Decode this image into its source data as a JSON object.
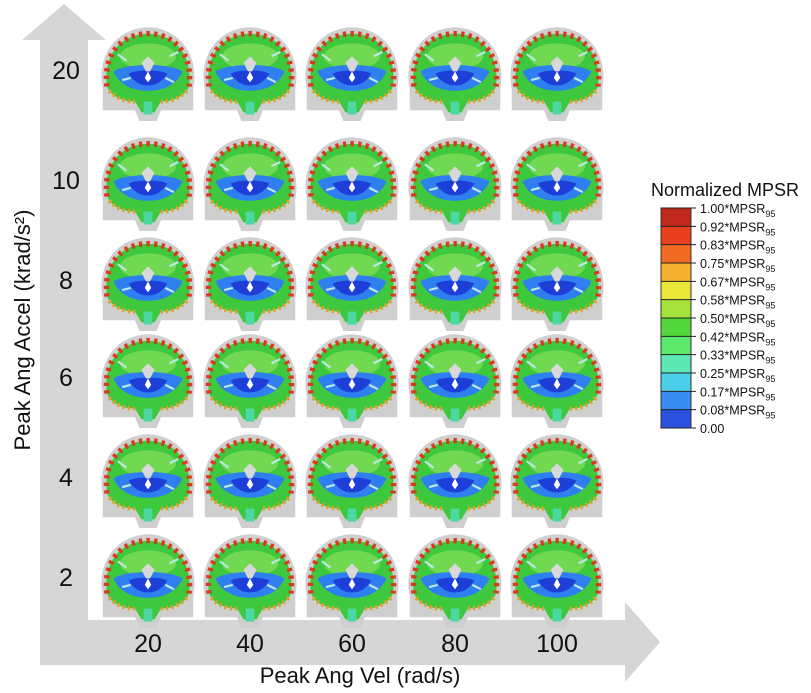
{
  "figure": {
    "y_axis_label": "Peak Ang Accel (krad/s²)",
    "x_axis_label": "Peak Ang Vel (rad/s)",
    "row_labels": [
      "20",
      "10",
      "8",
      "6",
      "4",
      "2"
    ],
    "column_labels": [
      "20",
      "40",
      "60",
      "80",
      "100"
    ],
    "colorbar": {
      "title": "Normalized MPSR",
      "colors": [
        "#c0281c",
        "#e8401e",
        "#f06a22",
        "#f5b030",
        "#e9e83a",
        "#a6e23a",
        "#52d83a",
        "#5ce86a",
        "#5ee8b4",
        "#4ccfe8",
        "#3a8cf0",
        "#2a50e0"
      ],
      "labels": [
        {
          "text": "1.00*MPSR",
          "sub": "95"
        },
        {
          "text": "0.92*MPSR",
          "sub": "95"
        },
        {
          "text": "0.83*MPSR",
          "sub": "95"
        },
        {
          "text": "0.75*MPSR",
          "sub": "95"
        },
        {
          "text": "0.67*MPSR",
          "sub": "95"
        },
        {
          "text": "0.58*MPSR",
          "sub": "95"
        },
        {
          "text": "0.50*MPSR",
          "sub": "95"
        },
        {
          "text": "0.42*MPSR",
          "sub": "95"
        },
        {
          "text": "0.33*MPSR",
          "sub": "95"
        },
        {
          "text": "0.25*MPSR",
          "sub": "95"
        },
        {
          "text": "0.17*MPSR",
          "sub": "95"
        },
        {
          "text": "0.08*MPSR",
          "sub": "95"
        },
        {
          "text": "0.00"
        }
      ]
    }
  }
}
